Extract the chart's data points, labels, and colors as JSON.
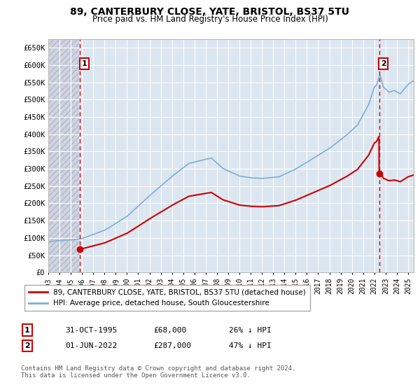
{
  "title": "89, CANTERBURY CLOSE, YATE, BRISTOL, BS37 5TU",
  "subtitle": "Price paid vs. HM Land Registry's House Price Index (HPI)",
  "ylim": [
    0,
    675000
  ],
  "yticks": [
    0,
    50000,
    100000,
    150000,
    200000,
    250000,
    300000,
    350000,
    400000,
    450000,
    500000,
    550000,
    600000,
    650000
  ],
  "ytick_labels": [
    "£0",
    "£50K",
    "£100K",
    "£150K",
    "£200K",
    "£250K",
    "£300K",
    "£350K",
    "£400K",
    "£450K",
    "£500K",
    "£550K",
    "£600K",
    "£650K"
  ],
  "xlim_min": 1993.0,
  "xlim_max": 2025.5,
  "sale1_date": 1995.83,
  "sale1_price": 68000,
  "sale2_date": 2022.42,
  "sale2_price": 287000,
  "hpi_color": "#7bafd4",
  "price_color": "#cc0000",
  "vline_color": "#cc0000",
  "chart_bg": "#dce6f0",
  "hatch_bg": "#d0d4e0",
  "legend_label1": "89, CANTERBURY CLOSE, YATE, BRISTOL, BS37 5TU (detached house)",
  "legend_label2": "HPI: Average price, detached house, South Gloucestershire",
  "note1_label": "1",
  "note1_date": "31-OCT-1995",
  "note1_price": "£68,000",
  "note1_hpi": "26% ↓ HPI",
  "note2_label": "2",
  "note2_date": "01-JUN-2022",
  "note2_price": "£287,000",
  "note2_hpi": "47% ↓ HPI",
  "footer": "Contains HM Land Registry data © Crown copyright and database right 2024.\nThis data is licensed under the Open Government Licence v3.0."
}
